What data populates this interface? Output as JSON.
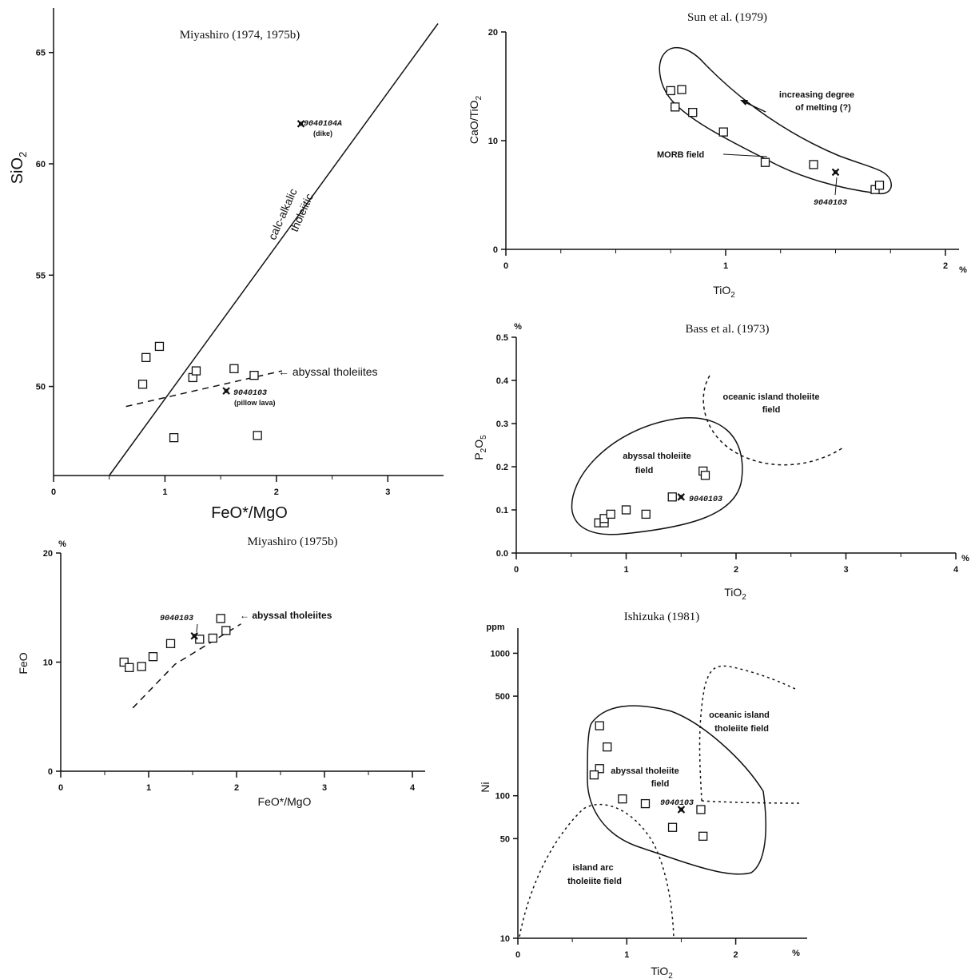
{
  "chart_data": [
    {
      "type": "scatter",
      "title": "Miyashiro (1974, 1975b)",
      "xlabel": "FeO*/MgO",
      "ylabel": "SiO2",
      "xlim": [
        0,
        3.5
      ],
      "ylim": [
        46,
        67
      ],
      "xticks": [
        "0",
        "1",
        "2",
        "3"
      ],
      "yticks": [
        "50",
        "55",
        "60",
        "65"
      ],
      "series": [
        {
          "marker": "square",
          "points": [
            [
              0.8,
              50.1
            ],
            [
              0.83,
              51.3
            ],
            [
              0.95,
              51.8
            ],
            [
              1.08,
              47.7
            ],
            [
              1.25,
              50.4
            ],
            [
              1.28,
              50.7
            ],
            [
              1.62,
              50.8
            ],
            [
              1.8,
              50.5
            ],
            [
              1.83,
              47.8
            ]
          ]
        },
        {
          "marker": "filled",
          "points": [
            [
              1.55,
              49.8
            ],
            [
              2.22,
              61.8
            ]
          ]
        }
      ],
      "divider_line": [
        [
          0.5,
          46
        ],
        [
          3.45,
          66.3
        ]
      ],
      "abyssal_line": [
        [
          0.65,
          49.1
        ],
        [
          2.05,
          50.7
        ]
      ],
      "labels": {
        "upper": "calc-alkalic",
        "lower": "tholeiitic",
        "abyssal": "← abyssal tholeiites",
        "sample1_id": "9040104A",
        "sample1_note": "(dike)",
        "sample2_id": "9040103",
        "sample2_note": "(pillow lava)"
      }
    },
    {
      "type": "scatter",
      "title": "Sun et al. (1979)",
      "xlabel": "TiO2",
      "ylabel": "CaO/TiO2",
      "xlim": [
        0,
        2
      ],
      "ylim": [
        0,
        20
      ],
      "xticks": [
        "0",
        "1",
        "2"
      ],
      "x_unit": "%",
      "yticks": [
        "0",
        "10",
        "20"
      ],
      "series": [
        {
          "marker": "square",
          "points": [
            [
              0.75,
              14.6
            ],
            [
              0.8,
              14.7
            ],
            [
              0.77,
              13.1
            ],
            [
              0.85,
              12.6
            ],
            [
              0.99,
              10.8
            ],
            [
              1.18,
              8.0
            ],
            [
              1.4,
              7.8
            ],
            [
              1.68,
              5.5
            ],
            [
              1.7,
              5.9
            ]
          ]
        },
        {
          "marker": "filled",
          "points": [
            [
              1.5,
              7.1
            ]
          ]
        }
      ],
      "labels": {
        "melting1": "increasing degree",
        "melting2": "of melting (?)",
        "morb": "MORB field",
        "sample": "9040103"
      }
    },
    {
      "type": "scatter",
      "title": "Bass et al. (1973)",
      "xlabel": "TiO2",
      "ylabel": "P2O5",
      "xlim": [
        0,
        4
      ],
      "ylim": [
        0,
        0.5
      ],
      "xticks": [
        "0",
        "1",
        "2",
        "3",
        "4"
      ],
      "x_unit": "%",
      "y_unit": "%",
      "yticks": [
        "0.0",
        "0.1",
        "0.2",
        "0.3",
        "0.4",
        "0.5"
      ],
      "series": [
        {
          "marker": "square",
          "points": [
            [
              0.75,
              0.07
            ],
            [
              0.8,
              0.07
            ],
            [
              0.8,
              0.08
            ],
            [
              0.86,
              0.09
            ],
            [
              1.0,
              0.1
            ],
            [
              1.18,
              0.09
            ],
            [
              1.42,
              0.13
            ],
            [
              1.7,
              0.19
            ],
            [
              1.72,
              0.18
            ]
          ]
        },
        {
          "marker": "filled",
          "points": [
            [
              1.5,
              0.13
            ]
          ]
        }
      ],
      "labels": {
        "oceanic1": "oceanic island tholeiite",
        "oceanic2": "field",
        "abyssal1": "abyssal tholeiite",
        "abyssal2": "field",
        "sample": "9040103"
      }
    },
    {
      "type": "scatter",
      "title": "Miyashiro (1975b)",
      "xlabel": "FeO*/MgO",
      "ylabel": "FeO",
      "xlim": [
        0,
        4
      ],
      "ylim": [
        0,
        20
      ],
      "xticks": [
        "0",
        "1",
        "2",
        "3",
        "4"
      ],
      "yticks": [
        "0",
        "10",
        "20"
      ],
      "y_unit": "%",
      "series": [
        {
          "marker": "square",
          "points": [
            [
              0.72,
              10.0
            ],
            [
              0.78,
              9.5
            ],
            [
              0.92,
              9.6
            ],
            [
              1.05,
              10.5
            ],
            [
              1.25,
              11.7
            ],
            [
              1.58,
              12.1
            ],
            [
              1.73,
              12.2
            ],
            [
              1.82,
              14.0
            ],
            [
              1.88,
              12.9
            ]
          ]
        },
        {
          "marker": "filled",
          "points": [
            [
              1.52,
              12.4
            ]
          ]
        }
      ],
      "abyssal_line": [
        [
          0.82,
          5.8
        ],
        [
          1.3,
          9.8
        ],
        [
          2.05,
          13.5
        ]
      ],
      "labels": {
        "sample": "9040103",
        "abyssal": "← abyssal tholeiites"
      }
    },
    {
      "type": "scatter",
      "title": "Ishizuka (1981)",
      "xlabel": "TiO2",
      "ylabel": "Ni",
      "y_scale": "log",
      "xlim": [
        0,
        2.7
      ],
      "ylim": [
        10,
        1500
      ],
      "xticks": [
        "0",
        "1",
        "2"
      ],
      "x_unit": "%",
      "y_unit": "ppm",
      "yticks": [
        "10",
        "50",
        "100",
        "500",
        "1000"
      ],
      "series": [
        {
          "marker": "square",
          "points": [
            [
              0.75,
              310
            ],
            [
              0.82,
              220
            ],
            [
              0.75,
              155
            ],
            [
              0.7,
              140
            ],
            [
              0.96,
              95
            ],
            [
              1.17,
              88
            ],
            [
              1.42,
              60
            ],
            [
              1.68,
              80
            ],
            [
              1.7,
              52
            ]
          ]
        },
        {
          "marker": "filled",
          "points": [
            [
              1.5,
              80
            ]
          ]
        }
      ],
      "labels": {
        "oceanic1": "oceanic island",
        "oceanic2": "tholeiite field",
        "abyssal1": "abyssal tholeiite",
        "abyssal2": "field",
        "arc1": "island arc",
        "arc2": "tholeiite field",
        "sample": "9040103"
      }
    }
  ]
}
